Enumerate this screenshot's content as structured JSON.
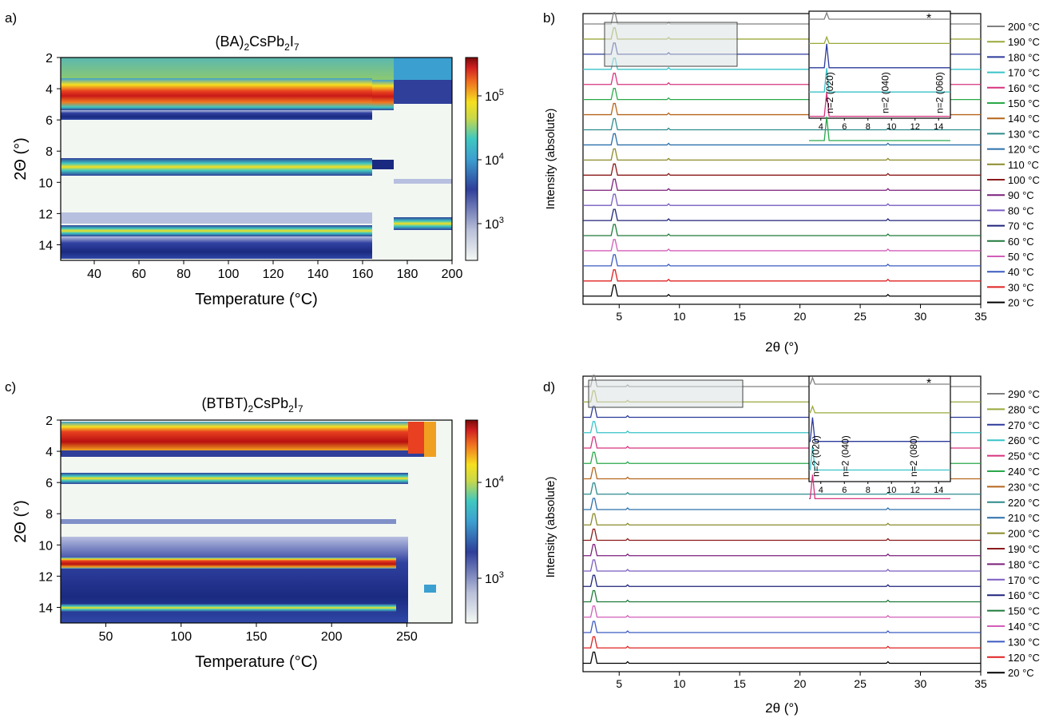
{
  "panels": {
    "a": {
      "letter": "a)",
      "title": {
        "base": "(BA)",
        "sub1": "2",
        "mid": "CsPb",
        "sub2": "2",
        "pre": "I",
        "sub3": "7"
      },
      "xlabel": "Temperature (°C)",
      "ylabel": "2Θ (°)",
      "xticks": [
        "40",
        "60",
        "80",
        "100",
        "120",
        "140",
        "160",
        "180",
        "200"
      ],
      "yticks": [
        "2",
        "4",
        "6",
        "8",
        "10",
        "12",
        "14"
      ],
      "cbar_ticks": [
        "10^5",
        "10^4",
        "10^3"
      ]
    },
    "b": {
      "letter": "b)",
      "xlabel": "2θ (°)",
      "ylabel": "Intensity (absolute)",
      "xticks": [
        "5",
        "10",
        "15",
        "20",
        "25",
        "30",
        "35"
      ],
      "legend": [
        "200 °C",
        "190 °C",
        "180 °C",
        "170 °C",
        "160 °C",
        "150 °C",
        "140 °C",
        "130 °C",
        "120 °C",
        "110 °C",
        "100 °C",
        "90 °C",
        "80 °C",
        "70 °C",
        "60 °C",
        "50 °C",
        "40 °C",
        "30 °C",
        "20 °C"
      ],
      "colors": [
        "#808080",
        "#9aa83a",
        "#2b3a9b",
        "#38c3c8",
        "#d6337e",
        "#2aa84a",
        "#b5651d",
        "#2d8a8c",
        "#2a6faa",
        "#8a8a2a",
        "#8b1a1a",
        "#7b1f7b",
        "#7a5cc0",
        "#1f237a",
        "#1e7a3a",
        "#d25db8",
        "#3a5ac0",
        "#e02020",
        "#000000"
      ],
      "inset_xticks": [
        "4",
        "6",
        "8",
        "10",
        "12",
        "14"
      ],
      "inset_labels": [
        "n=2 (020)",
        "n=2 (040)",
        "n=2 (060)"
      ],
      "star": "*"
    },
    "c": {
      "letter": "c)",
      "title": {
        "base": "(BTBT)",
        "sub1": "2",
        "mid": "CsPb",
        "sub2": "2",
        "pre": "I",
        "sub3": "7"
      },
      "xlabel": "Temperature (°C)",
      "ylabel": "2Θ (°)",
      "xticks": [
        "50",
        "100",
        "150",
        "200",
        "250"
      ],
      "yticks": [
        "2",
        "4",
        "6",
        "8",
        "10",
        "12",
        "14"
      ],
      "cbar_ticks": [
        "10^4",
        "10^3"
      ]
    },
    "d": {
      "letter": "d)",
      "xlabel": "2θ (°)",
      "ylabel": "Intensity (absolute)",
      "xticks": [
        "5",
        "10",
        "15",
        "20",
        "25",
        "30",
        "35"
      ],
      "legend": [
        "290 °C",
        "280 °C",
        "270 °C",
        "260 °C",
        "250 °C",
        "240 °C",
        "230 °C",
        "220 °C",
        "210 °C",
        "200 °C",
        "190 °C",
        "180 °C",
        "170 °C",
        "160 °C",
        "150 °C",
        "140 °C",
        "130 °C",
        "120 °C",
        "20 °C"
      ],
      "colors": [
        "#808080",
        "#9aa83a",
        "#2b3a9b",
        "#38c3c8",
        "#d6337e",
        "#2aa84a",
        "#b5651d",
        "#2d8a8c",
        "#2a6faa",
        "#8a8a2a",
        "#8b1a1a",
        "#7b1f7b",
        "#7a5cc0",
        "#1f237a",
        "#1e7a3a",
        "#d25db8",
        "#3a5ac0",
        "#e02020",
        "#000000"
      ],
      "inset_xticks": [
        "4",
        "6",
        "8",
        "10",
        "12",
        "14"
      ],
      "inset_labels": [
        "n=2 (020)",
        "n=2 (040)",
        "n=2 (080)"
      ],
      "star": "*"
    }
  },
  "chart_data": [
    {
      "type": "heatmap",
      "panel": "a",
      "title": "(BA)2CsPb2I7",
      "xlabel": "Temperature (°C)",
      "ylabel": "2Θ (°)",
      "xlim": [
        25,
        200
      ],
      "ylim": [
        15,
        2
      ],
      "colorbar": "log",
      "colorbar_range": [
        300,
        400000
      ],
      "bands_2theta": [
        4.5,
        5.6,
        9.0,
        13.5,
        14.2
      ],
      "transition_temps": [
        165,
        175
      ]
    },
    {
      "type": "line",
      "panel": "b",
      "xlabel": "2θ (°)",
      "ylabel": "Intensity (absolute)",
      "xlim": [
        2,
        35
      ],
      "series_names": [
        "20 °C",
        "30 °C",
        "40 °C",
        "50 °C",
        "60 °C",
        "70 °C",
        "80 °C",
        "90 °C",
        "100 °C",
        "110 °C",
        "120 °C",
        "130 °C",
        "140 °C",
        "150 °C",
        "160 °C",
        "170 °C",
        "180 °C",
        "190 °C",
        "200 °C"
      ],
      "peaks_2theta": [
        4.6,
        9.1,
        13.7,
        27.3
      ]
    },
    {
      "type": "heatmap",
      "panel": "c",
      "title": "(BTBT)2CsPb2I7",
      "xlabel": "Temperature (°C)",
      "ylabel": "2Θ (°)",
      "xlim": [
        20,
        280
      ],
      "ylim": [
        15,
        2
      ],
      "colorbar": "log",
      "colorbar_range": [
        300,
        50000
      ],
      "bands_2theta": [
        2.9,
        5.7,
        8.5,
        11.2,
        14.0
      ],
      "transition_temps": [
        250,
        262
      ]
    },
    {
      "type": "line",
      "panel": "d",
      "xlabel": "2θ (°)",
      "ylabel": "Intensity (absolute)",
      "xlim": [
        2,
        35
      ],
      "series_names": [
        "20 °C",
        "120 °C",
        "130 °C",
        "140 °C",
        "150 °C",
        "160 °C",
        "170 °C",
        "180 °C",
        "190 °C",
        "200 °C",
        "210 °C",
        "220 °C",
        "230 °C",
        "240 °C",
        "250 °C",
        "260 °C",
        "270 °C",
        "280 °C",
        "290 °C"
      ],
      "peaks_2theta": [
        2.9,
        5.7
      ]
    }
  ]
}
